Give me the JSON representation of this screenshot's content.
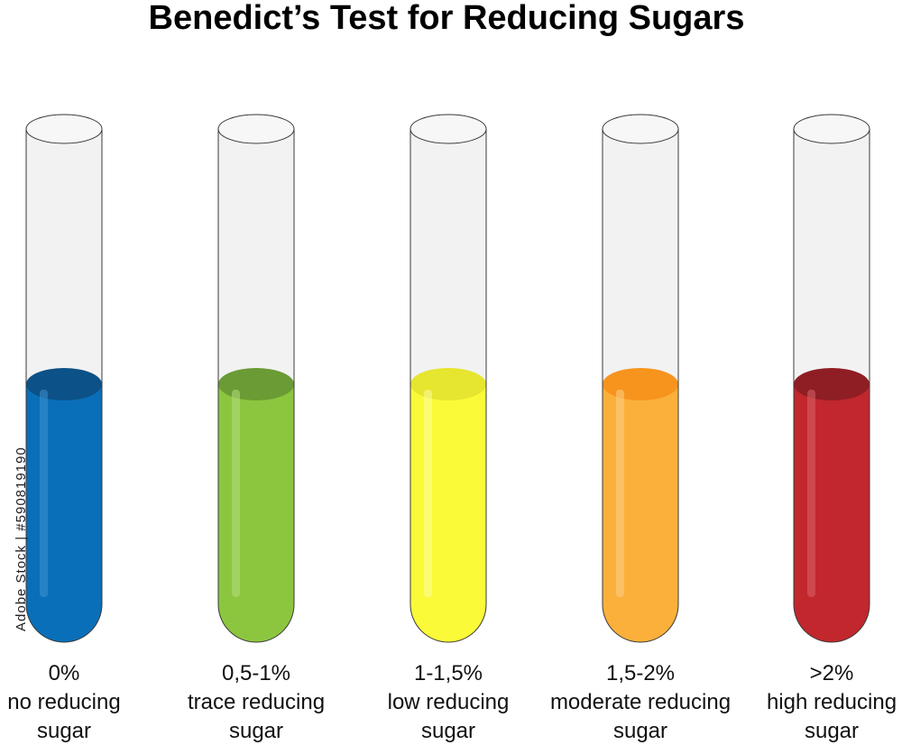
{
  "title": "Benedict’s Test for Reducing Sugars",
  "watermark": "Adobe Stock | #590819190",
  "colors": {
    "glass_fill": "#f2f2f2",
    "glass_stroke": "#3a3a3a"
  },
  "tubes": [
    {
      "percent": "0%",
      "line1": "no reducing",
      "line2": "sugar",
      "liquid": "#0a6fb9",
      "meniscus": "#0c5187",
      "highlight": "#3f92cf"
    },
    {
      "percent": "0,5-1%",
      "line1": "trace reducing",
      "line2": "sugar",
      "liquid": "#8cc63f",
      "meniscus": "#6a9b34",
      "highlight": "#b5dd7e"
    },
    {
      "percent": "1-1,5%",
      "line1": "low reducing",
      "line2": "sugar",
      "liquid": "#fbfa38",
      "meniscus": "#e6e52f",
      "highlight": "#fdfca3"
    },
    {
      "percent": "1,5-2%",
      "line1": "moderate reducing",
      "line2": "sugar",
      "liquid": "#fbb03b",
      "meniscus": "#f7941d",
      "highlight": "#fdd08a"
    },
    {
      "percent": ">2%",
      "line1": "high reducing",
      "line2": "sugar",
      "liquid": "#c1272d",
      "meniscus": "#8f1e24",
      "highlight": "#d96469"
    }
  ]
}
